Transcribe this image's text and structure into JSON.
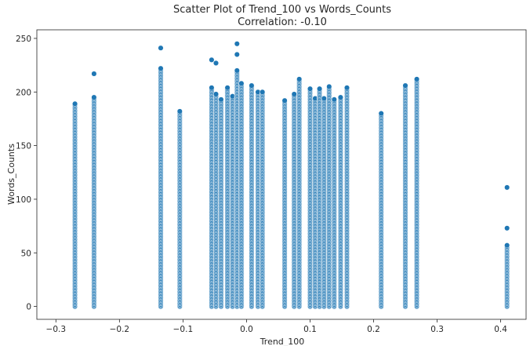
{
  "chart_data": {
    "type": "scatter",
    "title": "Scatter Plot of Trend_100 vs Words_Counts",
    "subtitle": "Correlation: -0.10",
    "xlabel": "Trend_100",
    "ylabel": "Words_Counts",
    "xlim": [
      -0.33,
      0.44
    ],
    "ylim": [
      -12,
      258
    ],
    "xticks": [
      -0.3,
      -0.2,
      -0.1,
      0.0,
      0.1,
      0.2,
      0.3,
      0.4
    ],
    "xtick_labels": [
      "−0.3",
      "−0.2",
      "−0.1",
      "0.0",
      "0.1",
      "0.2",
      "0.3",
      "0.4"
    ],
    "yticks": [
      0,
      50,
      100,
      150,
      200,
      250
    ],
    "ytick_labels": [
      "0",
      "50",
      "100",
      "150",
      "200",
      "250"
    ],
    "grid": false,
    "legend": "none",
    "point_color": "#1f77b4",
    "point_edge_color": "#ffffff",
    "columns": [
      {
        "x": -0.27,
        "max": 189
      },
      {
        "x": -0.24,
        "max": 195
      },
      {
        "x": -0.135,
        "max": 222
      },
      {
        "x": -0.105,
        "max": 182
      },
      {
        "x": -0.055,
        "max": 204
      },
      {
        "x": -0.048,
        "max": 198
      },
      {
        "x": -0.04,
        "max": 193
      },
      {
        "x": -0.03,
        "max": 204
      },
      {
        "x": -0.022,
        "max": 196
      },
      {
        "x": -0.015,
        "max": 220
      },
      {
        "x": -0.008,
        "max": 208
      },
      {
        "x": 0.008,
        "max": 206
      },
      {
        "x": 0.018,
        "max": 200
      },
      {
        "x": 0.025,
        "max": 200
      },
      {
        "x": 0.06,
        "max": 192
      },
      {
        "x": 0.075,
        "max": 198
      },
      {
        "x": 0.083,
        "max": 212
      },
      {
        "x": 0.1,
        "max": 203
      },
      {
        "x": 0.108,
        "max": 194
      },
      {
        "x": 0.115,
        "max": 203
      },
      {
        "x": 0.122,
        "max": 194
      },
      {
        "x": 0.13,
        "max": 205
      },
      {
        "x": 0.138,
        "max": 193
      },
      {
        "x": 0.148,
        "max": 195
      },
      {
        "x": 0.158,
        "max": 204
      },
      {
        "x": 0.212,
        "max": 180
      },
      {
        "x": 0.25,
        "max": 206
      },
      {
        "x": 0.268,
        "max": 212
      },
      {
        "x": 0.41,
        "max": 57
      }
    ],
    "outliers": [
      {
        "x": -0.24,
        "y": 217
      },
      {
        "x": -0.135,
        "y": 241
      },
      {
        "x": -0.055,
        "y": 230
      },
      {
        "x": -0.048,
        "y": 227
      },
      {
        "x": -0.015,
        "y": 245
      },
      {
        "x": -0.015,
        "y": 235
      },
      {
        "x": 0.41,
        "y": 111
      },
      {
        "x": 0.41,
        "y": 73
      }
    ]
  }
}
